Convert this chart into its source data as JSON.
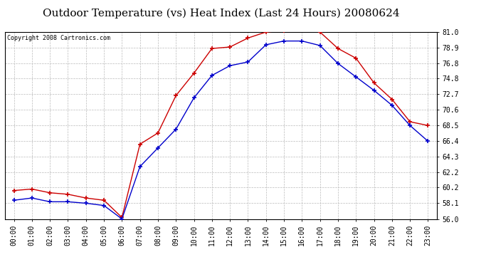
{
  "title": "Outdoor Temperature (vs) Heat Index (Last 24 Hours) 20080624",
  "copyright": "Copyright 2008 Cartronics.com",
  "x_labels": [
    "00:00",
    "01:00",
    "02:00",
    "03:00",
    "04:00",
    "05:00",
    "06:00",
    "07:00",
    "08:00",
    "09:00",
    "10:00",
    "11:00",
    "12:00",
    "13:00",
    "14:00",
    "15:00",
    "16:00",
    "17:00",
    "18:00",
    "19:00",
    "20:00",
    "21:00",
    "22:00",
    "23:00"
  ],
  "temp_data": [
    58.5,
    58.8,
    58.3,
    58.3,
    58.1,
    57.8,
    56.0,
    63.0,
    65.5,
    68.0,
    72.2,
    75.2,
    76.5,
    77.0,
    79.3,
    79.8,
    79.8,
    79.2,
    76.8,
    75.0,
    73.2,
    71.2,
    68.5,
    66.4
  ],
  "heat_data": [
    59.8,
    60.0,
    59.5,
    59.3,
    58.8,
    58.5,
    56.2,
    66.0,
    67.5,
    72.5,
    75.5,
    78.8,
    79.0,
    80.2,
    81.0,
    81.2,
    81.5,
    81.0,
    78.8,
    77.5,
    74.2,
    72.0,
    69.0,
    68.5
  ],
  "temp_color": "#0000cc",
  "heat_color": "#cc0000",
  "ylim": [
    56.0,
    81.0
  ],
  "yticks": [
    56.0,
    58.1,
    60.2,
    62.2,
    64.3,
    66.4,
    68.5,
    70.6,
    72.7,
    74.8,
    76.8,
    78.9,
    81.0
  ],
  "background_color": "#ffffff",
  "plot_bg_color": "#ffffff",
  "grid_color": "#bbbbbb",
  "title_fontsize": 11,
  "tick_fontsize": 7,
  "copyright_fontsize": 6
}
